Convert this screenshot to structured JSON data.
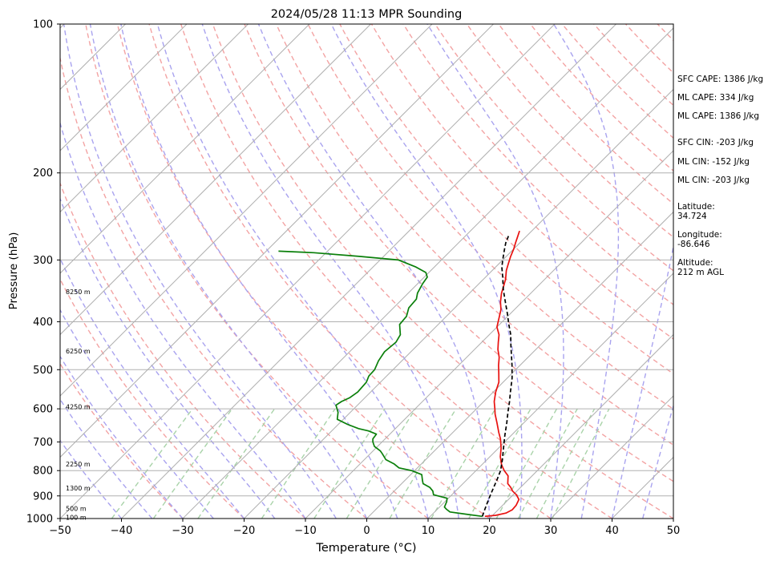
{
  "chart_data": {
    "type": "line",
    "title": "2024/05/28 11:13 MPR Sounding",
    "xlabel": "Temperature (°C)",
    "ylabel": "Pressure (hPa)",
    "xlim": [
      -50,
      50
    ],
    "ylim": [
      1000,
      100
    ],
    "yscale": "log",
    "skew": true,
    "grid": true,
    "x_ticks": [
      "−50",
      "−40",
      "−30",
      "−20",
      "−10",
      "0",
      "10",
      "20",
      "30",
      "40",
      "50"
    ],
    "x_tick_values": [
      -50,
      -40,
      -30,
      -20,
      -10,
      0,
      10,
      20,
      30,
      40,
      50
    ],
    "y_ticks": [
      "100",
      "200",
      "300",
      "400",
      "500",
      "600",
      "700",
      "800",
      "900",
      "1000"
    ],
    "y_tick_values": [
      100,
      200,
      300,
      400,
      500,
      600,
      700,
      800,
      900,
      1000
    ],
    "height_labels": [
      {
        "text": "8250 m",
        "p": 348
      },
      {
        "text": "6250 m",
        "p": 458
      },
      {
        "text": "4250 m",
        "p": 594
      },
      {
        "text": "2250 m",
        "p": 776
      },
      {
        "text": "1300 m",
        "p": 868
      },
      {
        "text": "500 m",
        "p": 955
      },
      {
        "text": "100 m",
        "p": 995
      }
    ],
    "series": [
      {
        "color": "#e8110f",
        "points": [
          [
            18.9,
            990
          ],
          [
            20.5,
            985
          ],
          [
            21.8,
            975
          ],
          [
            22.3,
            960
          ],
          [
            22.2,
            940
          ],
          [
            21.7,
            915
          ],
          [
            20.5,
            895
          ],
          [
            19.3,
            880
          ],
          [
            18.4,
            865
          ],
          [
            17.3,
            850
          ],
          [
            16.1,
            820
          ],
          [
            14.6,
            800
          ],
          [
            13.3,
            780
          ],
          [
            11.7,
            750
          ],
          [
            10.4,
            720
          ],
          [
            8.8,
            690
          ],
          [
            7.5,
            670
          ],
          [
            5.6,
            640
          ],
          [
            3.9,
            615
          ],
          [
            3.0,
            600
          ],
          [
            1.7,
            580
          ],
          [
            0.4,
            555
          ],
          [
            -0.7,
            530
          ],
          [
            -2.2,
            508
          ],
          [
            -3.5,
            490
          ],
          [
            -4.7,
            472
          ],
          [
            -6.2,
            455
          ],
          [
            -7.3,
            440
          ],
          [
            -8.4,
            425
          ],
          [
            -10.0,
            410
          ],
          [
            -11.0,
            395
          ],
          [
            -12.2,
            378
          ],
          [
            -13.5,
            365
          ],
          [
            -14.8,
            350
          ],
          [
            -15.5,
            340
          ],
          [
            -16.4,
            328
          ],
          [
            -17.7,
            315
          ],
          [
            -18.5,
            305
          ],
          [
            -19.3,
            295
          ],
          [
            -20.0,
            285
          ],
          [
            -20.7,
            277
          ],
          [
            -21.3,
            270
          ],
          [
            -22.0,
            262
          ]
        ]
      },
      {
        "color": "#0a7f0a",
        "points": [
          [
            18.5,
            990
          ],
          [
            15.5,
            980
          ],
          [
            12.5,
            970
          ],
          [
            11.5,
            958
          ],
          [
            10.8,
            948
          ],
          [
            10.3,
            925
          ],
          [
            9.8,
            910
          ],
          [
            7.0,
            895
          ],
          [
            6.3,
            880
          ],
          [
            5.2,
            865
          ],
          [
            3.5,
            850
          ],
          [
            2.9,
            838
          ],
          [
            1.8,
            815
          ],
          [
            -0.5,
            800
          ],
          [
            -3.0,
            790
          ],
          [
            -4.5,
            775
          ],
          [
            -6.5,
            760
          ],
          [
            -8.0,
            740
          ],
          [
            -8.8,
            730
          ],
          [
            -10.5,
            715
          ],
          [
            -11.5,
            700
          ],
          [
            -12.0,
            690
          ],
          [
            -12.2,
            675
          ],
          [
            -14.0,
            665
          ],
          [
            -16.0,
            658
          ],
          [
            -18.5,
            645
          ],
          [
            -21.0,
            630
          ],
          [
            -22.0,
            610
          ],
          [
            -23.5,
            590
          ],
          [
            -23.2,
            580
          ],
          [
            -22.5,
            570
          ],
          [
            -22.1,
            555
          ],
          [
            -22.3,
            530
          ],
          [
            -22.9,
            515
          ],
          [
            -23.0,
            500
          ],
          [
            -23.8,
            480
          ],
          [
            -24.3,
            460
          ],
          [
            -24.0,
            440
          ],
          [
            -24.5,
            425
          ],
          [
            -26.3,
            405
          ],
          [
            -26.5,
            390
          ],
          [
            -27.5,
            375
          ],
          [
            -27.7,
            360
          ],
          [
            -28.5,
            350
          ],
          [
            -29.2,
            335
          ],
          [
            -29.5,
            325
          ],
          [
            -30.5,
            318
          ],
          [
            -33.0,
            310
          ],
          [
            -37.0,
            300
          ],
          [
            -44.0,
            295
          ],
          [
            -52.0,
            290
          ],
          [
            -58.0,
            288
          ]
        ]
      },
      {
        "color": "#000000",
        "dash": true,
        "points": [
          [
            18.5,
            990
          ],
          [
            17.8,
            960
          ],
          [
            17.1,
            930
          ],
          [
            16.3,
            895
          ],
          [
            15.5,
            860
          ],
          [
            14.8,
            830
          ],
          [
            14.0,
            800
          ],
          [
            12.5,
            760
          ],
          [
            10.8,
            720
          ],
          [
            9.0,
            680
          ],
          [
            7.2,
            640
          ],
          [
            5.7,
            610
          ],
          [
            4.2,
            580
          ],
          [
            2.8,
            555
          ],
          [
            0.8,
            520
          ],
          [
            -1.3,
            490
          ],
          [
            -3.0,
            468
          ],
          [
            -4.7,
            447
          ],
          [
            -6.5,
            425
          ],
          [
            -8.5,
            405
          ],
          [
            -10.5,
            385
          ],
          [
            -12.7,
            365
          ],
          [
            -15.0,
            345
          ],
          [
            -17.2,
            325
          ],
          [
            -19.0,
            310
          ],
          [
            -20.2,
            298
          ],
          [
            -21.5,
            285
          ],
          [
            -22.3,
            277
          ],
          [
            -23.0,
            268
          ]
        ]
      }
    ]
  },
  "info": {
    "sfc_cape": "SFC CAPE: 1386 J/kg",
    "ml_cape_1": "ML CAPE: 334 J/kg",
    "ml_cape_2": "ML CAPE: 1386 J/kg",
    "sfc_cin": "SFC CIN: -203 J/kg",
    "ml_cin_1": "ML CIN: -152 J/kg",
    "ml_cin_2": "ML CIN: -203 J/kg",
    "latitude": "Latitude:\n34.724",
    "longitude": "Longitude:\n-86.646",
    "altitude": "Altitude:\n212 m AGL"
  },
  "colors": {
    "temperature": "#e8110f",
    "dewpoint": "#0a7f0a",
    "parcel": "#000000",
    "dry_adiabat": "#f3a3a3",
    "moist_adiabat": "#a9a3ef",
    "mixing_ratio": "#a9d3a9",
    "isotherm": "#b0b0b0"
  }
}
